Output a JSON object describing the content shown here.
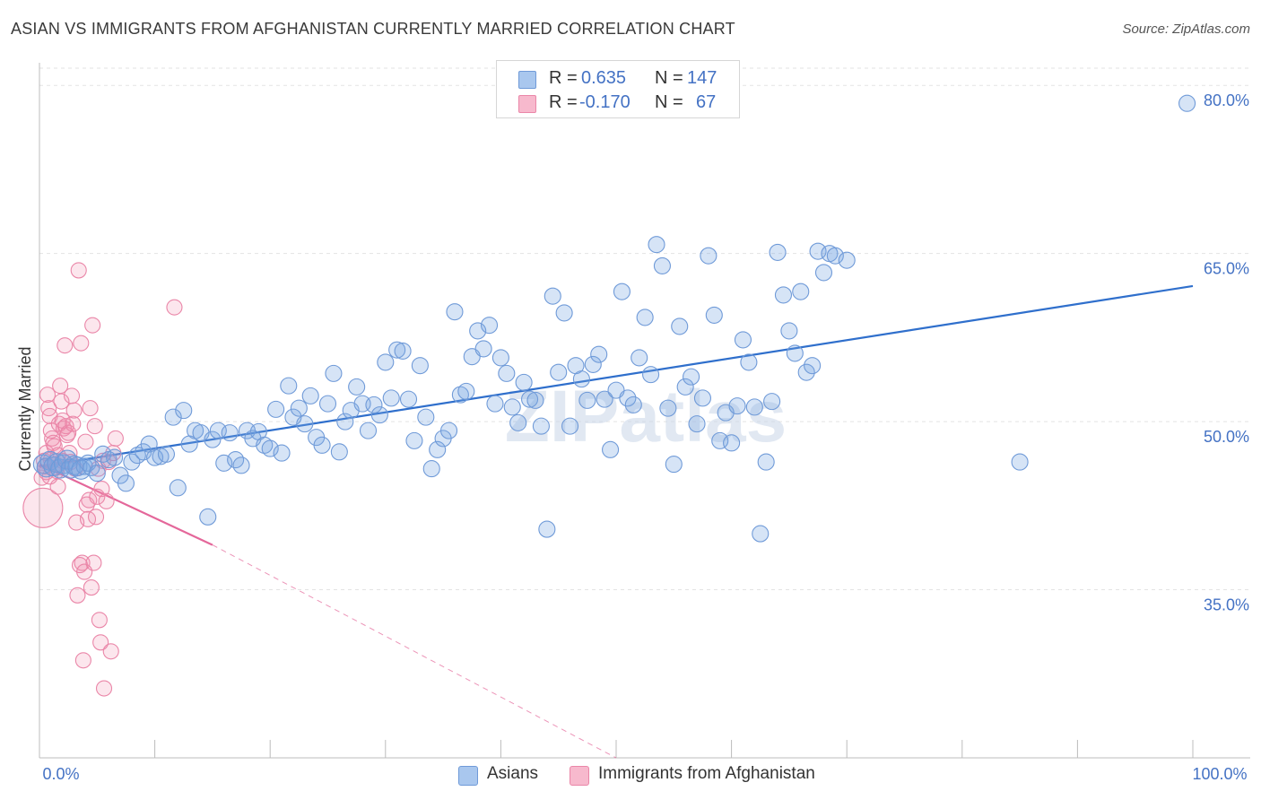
{
  "title": "ASIAN VS IMMIGRANTS FROM AFGHANISTAN CURRENTLY MARRIED CORRELATION CHART",
  "source": "Source: ZipAtlas.com",
  "watermark": "ZIPatlas",
  "legend_box": {
    "rows": [
      {
        "r_label": "R =",
        "r_value": "0.635",
        "n_label": "N =",
        "n_value": "147",
        "swatch_fill": "#a9c7ee",
        "swatch_stroke": "#6f9ad8"
      },
      {
        "r_label": "R =",
        "r_value": "-0.170",
        "n_label": "N =",
        "n_value": "67",
        "swatch_fill": "#f7b9cd",
        "swatch_stroke": "#ea86a8"
      }
    ]
  },
  "bottom_legend": [
    {
      "label": "Asians",
      "fill": "#a9c7ee",
      "stroke": "#6f9ad8"
    },
    {
      "label": "Immigrants from Afghanistan",
      "fill": "#f7b9cd",
      "stroke": "#ea86a8"
    }
  ],
  "colors": {
    "asians_point_fill": "rgba(120,165,225,0.30)",
    "asians_point_stroke": "#6f9ad8",
    "asians_line": "#2f6fcc",
    "afghan_point_fill": "rgba(240,140,175,0.22)",
    "afghan_point_stroke": "#ea86a8",
    "afghan_line": "#e4679a",
    "tick_label": "#4472c4",
    "grid": "#e3e3e3"
  },
  "chart_data": {
    "type": "scatter",
    "title": "ASIAN VS IMMIGRANTS FROM AFGHANISTAN CURRENTLY MARRIED CORRELATION CHART",
    "xlabel": "",
    "ylabel": "Currently Married",
    "xlim": [
      0,
      100
    ],
    "ylim": [
      20,
      82.5
    ],
    "x_tick_labels": [
      "0.0%",
      "100.0%"
    ],
    "y_ticks": [
      35,
      50,
      65,
      80
    ],
    "y_tick_labels": [
      "35.0%",
      "50.0%",
      "65.0%",
      "80.0%"
    ],
    "grid": true,
    "legend_placement": "bottom",
    "series": [
      {
        "name": "Asians",
        "r": "0.635",
        "n": "147",
        "trendline": {
          "x": [
            0,
            100
          ],
          "y": [
            46.0,
            62.1
          ],
          "style": "solid"
        },
        "points": [
          [
            0.3,
            46.2
          ],
          [
            0.6,
            45.9
          ],
          [
            0.9,
            46.5
          ],
          [
            1.2,
            46.0
          ],
          [
            1.5,
            46.3
          ],
          [
            1.8,
            45.8
          ],
          [
            2.1,
            46.2
          ],
          [
            2.4,
            46.6
          ],
          [
            2.7,
            45.8
          ],
          [
            3.0,
            46.1
          ],
          [
            3.3,
            46.0
          ],
          [
            3.6,
            45.7
          ],
          [
            3.9,
            46.0
          ],
          [
            4.2,
            46.3
          ],
          [
            4.5,
            45.9
          ],
          [
            5.0,
            45.4
          ],
          [
            5.5,
            47.1
          ],
          [
            6.0,
            46.6
          ],
          [
            6.5,
            46.8
          ],
          [
            7.0,
            45.2
          ],
          [
            7.5,
            44.5
          ],
          [
            8.0,
            46.4
          ],
          [
            8.5,
            47.0
          ],
          [
            9.0,
            47.3
          ],
          [
            9.5,
            48.0
          ],
          [
            10.0,
            46.8
          ],
          [
            10.5,
            46.9
          ],
          [
            11.0,
            47.1
          ],
          [
            11.6,
            50.4
          ],
          [
            12.0,
            44.1
          ],
          [
            12.5,
            51.0
          ],
          [
            13.0,
            48.0
          ],
          [
            13.5,
            49.2
          ],
          [
            14.0,
            49.0
          ],
          [
            14.6,
            41.5
          ],
          [
            15.0,
            48.4
          ],
          [
            15.5,
            49.2
          ],
          [
            16.0,
            46.3
          ],
          [
            16.5,
            49.0
          ],
          [
            17.0,
            46.6
          ],
          [
            17.5,
            46.1
          ],
          [
            18.0,
            49.2
          ],
          [
            18.5,
            48.5
          ],
          [
            19.0,
            49.1
          ],
          [
            19.5,
            47.9
          ],
          [
            20.0,
            47.6
          ],
          [
            20.5,
            51.1
          ],
          [
            21.0,
            47.2
          ],
          [
            21.6,
            53.2
          ],
          [
            22.0,
            50.4
          ],
          [
            22.5,
            51.2
          ],
          [
            23.0,
            49.8
          ],
          [
            23.5,
            52.3
          ],
          [
            24.0,
            48.6
          ],
          [
            24.5,
            47.9
          ],
          [
            25.0,
            51.6
          ],
          [
            25.5,
            54.3
          ],
          [
            26.0,
            47.3
          ],
          [
            26.5,
            50.0
          ],
          [
            27.0,
            51.0
          ],
          [
            27.5,
            53.1
          ],
          [
            28.0,
            51.6
          ],
          [
            28.5,
            49.2
          ],
          [
            29.0,
            51.5
          ],
          [
            29.5,
            50.6
          ],
          [
            30.0,
            55.3
          ],
          [
            30.5,
            52.1
          ],
          [
            31.0,
            56.4
          ],
          [
            31.5,
            56.3
          ],
          [
            32.0,
            52.0
          ],
          [
            32.5,
            48.3
          ],
          [
            33.0,
            55.0
          ],
          [
            33.5,
            50.4
          ],
          [
            34.0,
            45.8
          ],
          [
            34.5,
            47.5
          ],
          [
            35.0,
            48.5
          ],
          [
            35.5,
            49.2
          ],
          [
            36.0,
            59.8
          ],
          [
            36.5,
            52.4
          ],
          [
            37.0,
            52.7
          ],
          [
            37.5,
            55.8
          ],
          [
            38.0,
            58.1
          ],
          [
            38.5,
            56.5
          ],
          [
            39.0,
            58.6
          ],
          [
            39.5,
            51.6
          ],
          [
            40.0,
            55.7
          ],
          [
            40.5,
            54.3
          ],
          [
            41.0,
            51.3
          ],
          [
            41.5,
            49.9
          ],
          [
            42.0,
            53.5
          ],
          [
            42.5,
            52.0
          ],
          [
            43.0,
            51.9
          ],
          [
            43.5,
            49.6
          ],
          [
            44.0,
            40.4
          ],
          [
            44.5,
            61.2
          ],
          [
            45.0,
            54.4
          ],
          [
            45.5,
            59.7
          ],
          [
            46.0,
            49.6
          ],
          [
            46.5,
            55.0
          ],
          [
            47.0,
            53.8
          ],
          [
            47.5,
            51.9
          ],
          [
            48.0,
            55.1
          ],
          [
            48.5,
            56.0
          ],
          [
            49.0,
            52.0
          ],
          [
            49.5,
            47.5
          ],
          [
            50.0,
            52.8
          ],
          [
            50.5,
            61.6
          ],
          [
            51.0,
            52.1
          ],
          [
            51.5,
            51.5
          ],
          [
            52.0,
            55.7
          ],
          [
            52.5,
            59.3
          ],
          [
            53.0,
            54.2
          ],
          [
            53.5,
            65.8
          ],
          [
            54.0,
            63.9
          ],
          [
            54.5,
            51.2
          ],
          [
            55.0,
            46.2
          ],
          [
            55.5,
            58.5
          ],
          [
            56.0,
            53.1
          ],
          [
            56.5,
            54.0
          ],
          [
            57.0,
            49.8
          ],
          [
            57.5,
            52.1
          ],
          [
            58.0,
            64.8
          ],
          [
            58.5,
            59.5
          ],
          [
            59.0,
            48.3
          ],
          [
            59.5,
            50.8
          ],
          [
            60.0,
            48.1
          ],
          [
            60.5,
            51.4
          ],
          [
            61.0,
            57.3
          ],
          [
            61.5,
            55.3
          ],
          [
            62.0,
            51.3
          ],
          [
            62.5,
            40.0
          ],
          [
            63.0,
            46.4
          ],
          [
            63.5,
            51.8
          ],
          [
            64.0,
            65.1
          ],
          [
            64.5,
            61.3
          ],
          [
            65.0,
            58.1
          ],
          [
            65.5,
            56.1
          ],
          [
            66.0,
            61.6
          ],
          [
            66.5,
            54.4
          ],
          [
            67.0,
            55.0
          ],
          [
            67.5,
            65.2
          ],
          [
            68.0,
            63.3
          ],
          [
            68.5,
            65.0
          ],
          [
            69.0,
            64.8
          ],
          [
            70.0,
            64.4
          ],
          [
            85.0,
            46.4
          ],
          [
            99.5,
            78.4
          ]
        ]
      },
      {
        "name": "Immigrants from Afghanistan",
        "r": "-0.170",
        "n": "67",
        "trendline": {
          "x": [
            0,
            15
          ],
          "y": [
            46.2,
            39.0
          ],
          "style": "solid",
          "dashed_extension": {
            "x": [
              15,
              50
            ],
            "y": [
              39.0,
              20.0
            ]
          }
        },
        "points": [
          [
            0.2,
            45.0
          ],
          [
            0.3,
            42.3
          ],
          [
            0.4,
            46.5
          ],
          [
            0.5,
            46.0
          ],
          [
            0.6,
            47.2
          ],
          [
            0.7,
            52.4
          ],
          [
            0.8,
            51.2
          ],
          [
            0.9,
            50.5
          ],
          [
            1.0,
            49.2
          ],
          [
            1.1,
            48.5
          ],
          [
            1.2,
            48.1
          ],
          [
            1.3,
            47.8
          ],
          [
            1.4,
            46.2
          ],
          [
            1.5,
            45.6
          ],
          [
            1.6,
            44.2
          ],
          [
            1.7,
            49.8
          ],
          [
            1.8,
            53.2
          ],
          [
            1.9,
            51.8
          ],
          [
            2.0,
            50.1
          ],
          [
            2.1,
            49.4
          ],
          [
            2.2,
            56.8
          ],
          [
            2.3,
            49.6
          ],
          [
            2.4,
            48.8
          ],
          [
            2.5,
            49.0
          ],
          [
            2.6,
            47.2
          ],
          [
            2.7,
            46.4
          ],
          [
            2.8,
            52.3
          ],
          [
            2.9,
            49.8
          ],
          [
            3.0,
            51.0
          ],
          [
            3.1,
            45.8
          ],
          [
            3.2,
            41.0
          ],
          [
            3.3,
            34.5
          ],
          [
            3.4,
            63.5
          ],
          [
            3.5,
            37.2
          ],
          [
            3.6,
            57.0
          ],
          [
            3.7,
            37.4
          ],
          [
            3.8,
            28.7
          ],
          [
            3.9,
            36.6
          ],
          [
            4.0,
            48.2
          ],
          [
            4.1,
            42.6
          ],
          [
            4.2,
            41.3
          ],
          [
            4.3,
            43.0
          ],
          [
            4.4,
            51.2
          ],
          [
            4.5,
            35.2
          ],
          [
            4.6,
            58.6
          ],
          [
            4.7,
            37.4
          ],
          [
            4.8,
            49.6
          ],
          [
            4.9,
            41.5
          ],
          [
            5.0,
            43.3
          ],
          [
            5.1,
            45.8
          ],
          [
            5.2,
            32.3
          ],
          [
            5.3,
            30.3
          ],
          [
            5.4,
            44.0
          ],
          [
            5.5,
            46.5
          ],
          [
            5.6,
            26.2
          ],
          [
            5.8,
            42.9
          ],
          [
            6.0,
            46.4
          ],
          [
            6.2,
            29.5
          ],
          [
            6.4,
            47.2
          ],
          [
            6.6,
            48.5
          ],
          [
            0.6,
            45.5
          ],
          [
            1.0,
            46.6
          ],
          [
            1.5,
            45.9
          ],
          [
            2.0,
            46.5
          ],
          [
            11.7,
            60.2
          ],
          [
            0.9,
            45.1
          ],
          [
            1.6,
            47.0
          ]
        ]
      }
    ]
  }
}
